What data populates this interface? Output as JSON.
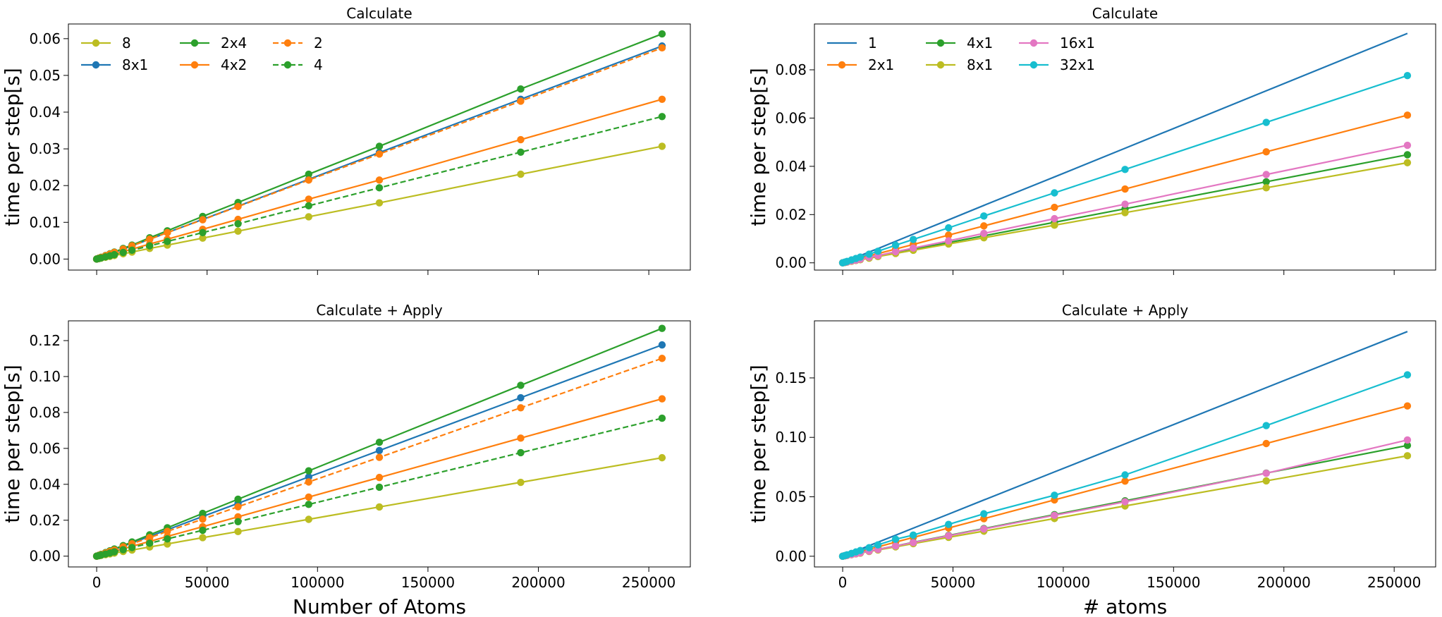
{
  "chart_data": [
    {
      "type": "line",
      "title": "Calculate",
      "xlabel": "",
      "ylabel": "time per step[s]",
      "xlim": [
        -12800,
        268800
      ],
      "ylim": [
        -0.003,
        0.064
      ],
      "xticks": [
        0,
        50000,
        100000,
        150000,
        200000,
        250000
      ],
      "xtick_labels_visible": false,
      "yticks": [
        0.0,
        0.01,
        0.02,
        0.03,
        0.04,
        0.05,
        0.06
      ],
      "ytick_labels": [
        "0.00",
        "0.01",
        "0.02",
        "0.03",
        "0.04",
        "0.05",
        "0.06"
      ],
      "legend": {
        "position": "top-left",
        "columns": 3
      },
      "x": [
        0,
        1000,
        2000,
        4000,
        6000,
        8000,
        12000,
        16000,
        24000,
        32000,
        48000,
        64000,
        96000,
        128000,
        192000,
        256000
      ],
      "series": [
        {
          "name": "8",
          "color": "#bcbd22",
          "dashed": false,
          "values": [
            0,
            0.00012,
            0.00024,
            0.00048,
            0.00072,
            0.00096,
            0.00144,
            0.0019,
            0.0029,
            0.0038,
            0.0057,
            0.0076,
            0.0115,
            0.0153,
            0.0231,
            0.0307
          ]
        },
        {
          "name": "8x1",
          "color": "#1f77b4",
          "dashed": false,
          "values": [
            0,
            0.00023,
            0.00045,
            0.0009,
            0.00136,
            0.0018,
            0.0027,
            0.0036,
            0.0054,
            0.0072,
            0.0108,
            0.0144,
            0.0217,
            0.029,
            0.0435,
            0.058
          ]
        },
        {
          "name": "2x4",
          "color": "#2ca02c",
          "dashed": false,
          "values": [
            0,
            0.00024,
            0.00048,
            0.00096,
            0.00144,
            0.0019,
            0.0029,
            0.0038,
            0.0058,
            0.0077,
            0.0116,
            0.0154,
            0.0231,
            0.0307,
            0.0463,
            0.0613
          ]
        },
        {
          "name": "4x2",
          "color": "#ff7f0e",
          "dashed": false,
          "values": [
            0,
            0.00017,
            0.00034,
            0.00068,
            0.001,
            0.00136,
            0.002,
            0.0027,
            0.0041,
            0.0054,
            0.0081,
            0.0108,
            0.0163,
            0.0215,
            0.0325,
            0.0435
          ]
        },
        {
          "name": "2",
          "color": "#ff7f0e",
          "dashed": true,
          "values": [
            0,
            0.00023,
            0.00045,
            0.0009,
            0.00135,
            0.0018,
            0.0027,
            0.0036,
            0.0054,
            0.0072,
            0.0107,
            0.0143,
            0.0215,
            0.0286,
            0.043,
            0.0575
          ]
        },
        {
          "name": "4",
          "color": "#2ca02c",
          "dashed": true,
          "values": [
            0,
            0.00015,
            0.0003,
            0.0006,
            0.0009,
            0.0012,
            0.0018,
            0.0024,
            0.0036,
            0.0048,
            0.0072,
            0.0096,
            0.0145,
            0.0194,
            0.0291,
            0.0388
          ]
        }
      ]
    },
    {
      "type": "line",
      "title": "Calculate",
      "xlabel": "",
      "ylabel": "time per step[s]",
      "xlim": [
        -12800,
        268800
      ],
      "ylim": [
        -0.003,
        0.099
      ],
      "xticks": [
        0,
        50000,
        100000,
        150000,
        200000,
        250000
      ],
      "xtick_labels_visible": false,
      "yticks": [
        0.0,
        0.02,
        0.04,
        0.06,
        0.08
      ],
      "ytick_labels": [
        "0.00",
        "0.02",
        "0.04",
        "0.06",
        "0.08"
      ],
      "legend": {
        "position": "top-left",
        "columns": 3
      },
      "x": [
        0,
        1000,
        2000,
        4000,
        6000,
        8000,
        12000,
        16000,
        24000,
        32000,
        48000,
        64000,
        96000,
        128000,
        192000,
        256000
      ],
      "series": [
        {
          "name": "1",
          "color": "#1f77b4",
          "dashed": false,
          "markers": false,
          "values": [
            0,
            0.00037,
            0.00074,
            0.0015,
            0.0022,
            0.003,
            0.0045,
            0.0059,
            0.0089,
            0.0119,
            0.0178,
            0.0238,
            0.0356,
            0.0475,
            0.0713,
            0.0951
          ]
        },
        {
          "name": "2x1",
          "color": "#ff7f0e",
          "dashed": false,
          "values": [
            0,
            0.00024,
            0.00048,
            0.00096,
            0.0014,
            0.0019,
            0.0029,
            0.0038,
            0.0057,
            0.0076,
            0.0115,
            0.0153,
            0.023,
            0.0306,
            0.046,
            0.0612
          ]
        },
        {
          "name": "4x1",
          "color": "#2ca02c",
          "dashed": false,
          "values": [
            0,
            0.00017,
            0.00035,
            0.0007,
            0.001,
            0.0014,
            0.0021,
            0.0028,
            0.0042,
            0.0056,
            0.0084,
            0.0112,
            0.0168,
            0.0224,
            0.0336,
            0.0448
          ]
        },
        {
          "name": "8x1",
          "color": "#bcbd22",
          "dashed": false,
          "values": [
            0,
            0.00016,
            0.00032,
            0.00065,
            0.001,
            0.0013,
            0.0019,
            0.0026,
            0.0039,
            0.0052,
            0.0078,
            0.0104,
            0.0156,
            0.0208,
            0.0311,
            0.0415
          ]
        },
        {
          "name": "16x1",
          "color": "#e377c2",
          "dashed": false,
          "values": [
            0,
            0.00019,
            0.00038,
            0.00076,
            0.0011,
            0.0015,
            0.0023,
            0.003,
            0.0046,
            0.0061,
            0.0091,
            0.0122,
            0.0183,
            0.0243,
            0.0366,
            0.0487
          ]
        },
        {
          "name": "32x1",
          "color": "#17becf",
          "dashed": false,
          "values": [
            0,
            0.0003,
            0.0006,
            0.0012,
            0.0018,
            0.0024,
            0.0036,
            0.0048,
            0.0073,
            0.0097,
            0.0145,
            0.0194,
            0.029,
            0.0387,
            0.0582,
            0.0776
          ]
        }
      ]
    },
    {
      "type": "line",
      "title": "Calculate + Apply",
      "xlabel": "Number of Atoms",
      "ylabel": "time per step[s]",
      "xlim": [
        -12800,
        268800
      ],
      "ylim": [
        -0.006,
        0.131
      ],
      "xticks": [
        0,
        50000,
        100000,
        150000,
        200000,
        250000
      ],
      "xtick_labels": [
        "0",
        "50000",
        "100000",
        "150000",
        "200000",
        "250000"
      ],
      "xtick_labels_visible": true,
      "yticks": [
        0.0,
        0.02,
        0.04,
        0.06,
        0.08,
        0.1,
        0.12
      ],
      "ytick_labels": [
        "0.00",
        "0.02",
        "0.04",
        "0.06",
        "0.08",
        "0.10",
        "0.12"
      ],
      "x": [
        0,
        1000,
        2000,
        4000,
        6000,
        8000,
        12000,
        16000,
        24000,
        32000,
        48000,
        64000,
        96000,
        128000,
        192000,
        256000
      ],
      "series": [
        {
          "name": "8",
          "color": "#bcbd22",
          "dashed": false,
          "values": [
            0,
            0.00021,
            0.00043,
            0.00086,
            0.0013,
            0.0017,
            0.0026,
            0.0034,
            0.0051,
            0.0068,
            0.0103,
            0.0137,
            0.0205,
            0.0274,
            0.0411,
            0.0548
          ]
        },
        {
          "name": "8x1",
          "color": "#1f77b4",
          "dashed": false,
          "values": [
            0,
            0.00046,
            0.00092,
            0.0018,
            0.0028,
            0.0037,
            0.0055,
            0.0074,
            0.011,
            0.0147,
            0.0221,
            0.0294,
            0.0441,
            0.0588,
            0.0882,
            0.1176
          ]
        },
        {
          "name": "2x4",
          "color": "#2ca02c",
          "dashed": false,
          "values": [
            0,
            0.0005,
            0.00099,
            0.002,
            0.003,
            0.004,
            0.0059,
            0.0079,
            0.0119,
            0.0158,
            0.0238,
            0.0317,
            0.0475,
            0.0634,
            0.0951,
            0.1268
          ]
        },
        {
          "name": "4x2",
          "color": "#ff7f0e",
          "dashed": false,
          "values": [
            0,
            0.00034,
            0.00069,
            0.0014,
            0.0021,
            0.0027,
            0.0041,
            0.0055,
            0.0082,
            0.011,
            0.0164,
            0.0219,
            0.0329,
            0.0438,
            0.0657,
            0.0876
          ]
        },
        {
          "name": "2",
          "color": "#ff7f0e",
          "dashed": true,
          "values": [
            0,
            0.00043,
            0.00086,
            0.0017,
            0.0026,
            0.0034,
            0.0052,
            0.0069,
            0.0103,
            0.0138,
            0.0206,
            0.0275,
            0.0413,
            0.055,
            0.0826,
            0.1101
          ]
        },
        {
          "name": "4",
          "color": "#2ca02c",
          "dashed": true,
          "values": [
            0,
            0.0003,
            0.0006,
            0.0012,
            0.0018,
            0.0024,
            0.0036,
            0.0048,
            0.0072,
            0.0096,
            0.0144,
            0.0192,
            0.0288,
            0.0384,
            0.0576,
            0.0768
          ]
        }
      ]
    },
    {
      "type": "line",
      "title": "Calculate + Apply",
      "xlabel": "# atoms",
      "ylabel": "time per step[s]",
      "xlim": [
        -12800,
        268800
      ],
      "ylim": [
        -0.009,
        0.198
      ],
      "xticks": [
        0,
        50000,
        100000,
        150000,
        200000,
        250000
      ],
      "xtick_labels": [
        "0",
        "50000",
        "100000",
        "150000",
        "200000",
        "250000"
      ],
      "xtick_labels_visible": true,
      "yticks": [
        0.0,
        0.05,
        0.1,
        0.15
      ],
      "ytick_labels": [
        "0.00",
        "0.05",
        "0.10",
        "0.15"
      ],
      "x": [
        0,
        1000,
        2000,
        4000,
        6000,
        8000,
        12000,
        16000,
        24000,
        32000,
        48000,
        64000,
        96000,
        128000,
        192000,
        256000
      ],
      "series": [
        {
          "name": "1",
          "color": "#1f77b4",
          "dashed": false,
          "markers": false,
          "values": [
            0,
            0.00074,
            0.0015,
            0.003,
            0.0044,
            0.0059,
            0.0089,
            0.0118,
            0.0177,
            0.0236,
            0.0354,
            0.0473,
            0.0709,
            0.0945,
            0.1418,
            0.189
          ]
        },
        {
          "name": "2x1",
          "color": "#ff7f0e",
          "dashed": false,
          "values": [
            0,
            0.0005,
            0.00099,
            0.002,
            0.003,
            0.004,
            0.0059,
            0.0079,
            0.0119,
            0.0158,
            0.0237,
            0.0316,
            0.0474,
            0.0632,
            0.0948,
            0.1264
          ]
        },
        {
          "name": "4x1",
          "color": "#2ca02c",
          "dashed": false,
          "values": [
            0,
            0.00036,
            0.00073,
            0.0015,
            0.0022,
            0.0029,
            0.0044,
            0.0058,
            0.0087,
            0.0117,
            0.0175,
            0.0233,
            0.035,
            0.0466,
            0.0699,
            0.0932
          ]
        },
        {
          "name": "8x1",
          "color": "#bcbd22",
          "dashed": false,
          "values": [
            0,
            0.00033,
            0.00066,
            0.0013,
            0.002,
            0.0026,
            0.004,
            0.0053,
            0.0079,
            0.0106,
            0.0159,
            0.0211,
            0.0317,
            0.0423,
            0.0634,
            0.0845
          ]
        },
        {
          "name": "16x1",
          "color": "#e377c2",
          "dashed": false,
          "values": [
            0,
            0.00036,
            0.00072,
            0.0014,
            0.0021,
            0.0029,
            0.0043,
            0.0057,
            0.0086,
            0.0115,
            0.0172,
            0.0229,
            0.0344,
            0.0458,
            0.0698,
            0.0978
          ]
        },
        {
          "name": "32x1",
          "color": "#17becf",
          "dashed": false,
          "values": [
            0,
            0.0006,
            0.0012,
            0.0024,
            0.0036,
            0.0048,
            0.0072,
            0.0096,
            0.0143,
            0.0178,
            0.0268,
            0.0357,
            0.0513,
            0.0684,
            0.1099,
            0.1526
          ]
        }
      ]
    }
  ]
}
